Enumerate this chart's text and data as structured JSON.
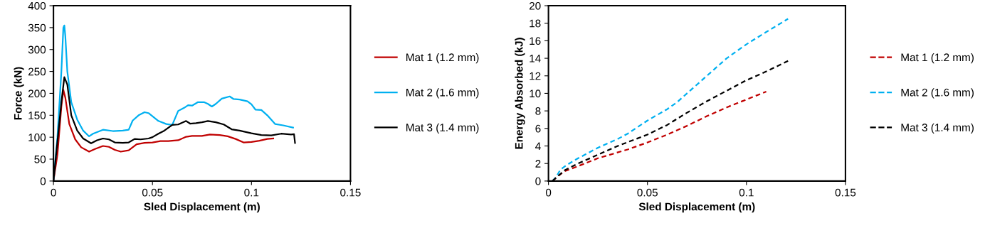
{
  "chart_data": [
    {
      "type": "line",
      "xlabel": "Sled Displacement (m)",
      "ylabel": "Force (kN)",
      "xlim": [
        0,
        0.15
      ],
      "xticks": [
        0,
        0.05,
        0.1,
        0.15
      ],
      "ylim": [
        0,
        400
      ],
      "yticks": [
        0,
        50,
        100,
        150,
        200,
        250,
        300,
        350,
        400
      ],
      "grid": false,
      "legend": "right",
      "marker": "none",
      "line_style": "solid",
      "series": [
        {
          "name": "Mat 1 (1.2 mm)",
          "color": "#c00000",
          "x": [
            0,
            0.002,
            0.004,
            0.005,
            0.006,
            0.008,
            0.011,
            0.014,
            0.018,
            0.021,
            0.025,
            0.028,
            0.031,
            0.034,
            0.038,
            0.042,
            0.046,
            0.05,
            0.054,
            0.058,
            0.063,
            0.067,
            0.07,
            0.075,
            0.079,
            0.084,
            0.088,
            0.092,
            0.096,
            0.1,
            0.104,
            0.108,
            0.111
          ],
          "values": [
            0,
            60,
            170,
            208,
            190,
            130,
            95,
            77,
            67,
            73,
            80,
            78,
            71,
            67,
            70,
            84,
            87,
            88,
            91,
            91,
            93,
            101,
            103,
            103,
            106,
            105,
            102,
            96,
            88,
            89,
            92,
            96,
            97
          ]
        },
        {
          "name": "Mat 2 (1.6 mm)",
          "color": "#00b0f0",
          "x": [
            0,
            0.002,
            0.004,
            0.005,
            0.0055,
            0.006,
            0.007,
            0.009,
            0.012,
            0.015,
            0.018,
            0.02,
            0.025,
            0.03,
            0.035,
            0.038,
            0.04,
            0.043,
            0.046,
            0.048,
            0.05,
            0.053,
            0.057,
            0.06,
            0.063,
            0.066,
            0.068,
            0.07,
            0.073,
            0.076,
            0.078,
            0.08,
            0.082,
            0.085,
            0.089,
            0.091,
            0.094,
            0.098,
            0.1,
            0.102,
            0.105,
            0.108,
            0.112,
            0.116,
            0.121
          ],
          "values": [
            0,
            100,
            250,
            350,
            355,
            330,
            250,
            180,
            140,
            115,
            102,
            108,
            117,
            114,
            115,
            117,
            138,
            150,
            157,
            155,
            148,
            137,
            130,
            128,
            160,
            167,
            173,
            172,
            180,
            180,
            176,
            170,
            176,
            188,
            193,
            187,
            186,
            182,
            175,
            163,
            162,
            150,
            130,
            127,
            122
          ]
        },
        {
          "name": "Mat 3 (1.4 mm)",
          "color": "#000000",
          "x": [
            0,
            0.002,
            0.004,
            0.0055,
            0.007,
            0.009,
            0.012,
            0.015,
            0.019,
            0.022,
            0.025,
            0.028,
            0.031,
            0.035,
            0.038,
            0.041,
            0.044,
            0.048,
            0.05,
            0.053,
            0.056,
            0.06,
            0.063,
            0.066,
            0.067,
            0.069,
            0.072,
            0.075,
            0.078,
            0.082,
            0.086,
            0.09,
            0.094,
            0.1,
            0.105,
            0.11,
            0.115,
            0.12,
            0.1215,
            0.122
          ],
          "values": [
            0,
            90,
            180,
            237,
            220,
            150,
            115,
            97,
            86,
            93,
            97,
            95,
            88,
            87,
            88,
            96,
            95,
            97,
            100,
            108,
            115,
            128,
            129,
            135,
            137,
            131,
            132,
            134,
            137,
            134,
            129,
            118,
            115,
            109,
            105,
            104,
            108,
            106,
            107,
            87
          ]
        }
      ]
    },
    {
      "type": "line",
      "xlabel": "Sled Displacement (m)",
      "ylabel": "Energy Absorbed (kJ)",
      "xlim": [
        0,
        0.15
      ],
      "xticks": [
        0,
        0.05,
        0.1,
        0.15
      ],
      "ylim": [
        0,
        20
      ],
      "yticks": [
        0,
        2,
        4,
        6,
        8,
        10,
        12,
        14,
        16,
        18,
        20
      ],
      "grid": false,
      "legend": "right",
      "marker": "none",
      "line_style": "dashed",
      "series": [
        {
          "name": "Mat 1 (1.2 mm)",
          "color": "#c00000",
          "x": [
            0.002,
            0.005,
            0.008,
            0.015,
            0.025,
            0.04,
            0.05,
            0.06,
            0.07,
            0.08,
            0.09,
            0.1,
            0.11
          ],
          "values": [
            0,
            0.6,
            1.1,
            1.7,
            2.6,
            3.6,
            4.4,
            5.3,
            6.3,
            7.4,
            8.4,
            9.3,
            10.2
          ]
        },
        {
          "name": "Mat 2 (1.6 mm)",
          "color": "#00b0f0",
          "x": [
            0.002,
            0.004,
            0.006,
            0.009,
            0.015,
            0.025,
            0.035,
            0.04,
            0.05,
            0.06,
            0.065,
            0.07,
            0.08,
            0.09,
            0.1,
            0.11,
            0.121
          ],
          "values": [
            0,
            0.5,
            1.3,
            1.8,
            2.6,
            3.8,
            4.8,
            5.4,
            6.9,
            8.2,
            9.0,
            10.0,
            12.0,
            14.0,
            15.6,
            17.0,
            18.5
          ]
        },
        {
          "name": "Mat 3 (1.4 mm)",
          "color": "#000000",
          "x": [
            0.002,
            0.005,
            0.008,
            0.015,
            0.025,
            0.035,
            0.05,
            0.06,
            0.07,
            0.08,
            0.09,
            0.1,
            0.11,
            0.121
          ],
          "values": [
            0,
            0.6,
            1.2,
            2.0,
            3.0,
            4.0,
            5.3,
            6.4,
            7.8,
            9.1,
            10.3,
            11.5,
            12.5,
            13.7
          ]
        }
      ]
    }
  ]
}
